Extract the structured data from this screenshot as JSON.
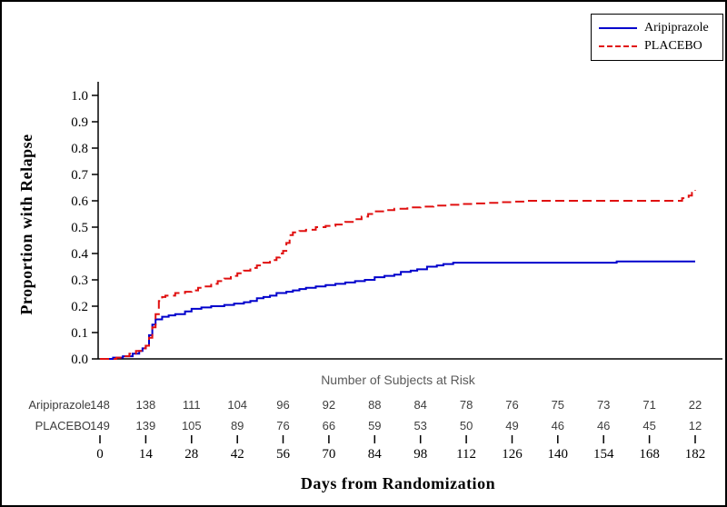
{
  "figure": {
    "background": "#ffffff",
    "border_color": "#000000"
  },
  "chart_data": {
    "type": "line",
    "subtype": "kaplan-meier-step",
    "title": "",
    "xlabel": "Days from Randomization",
    "ylabel": "Proportion with Relapse",
    "xlim": [
      0,
      182
    ],
    "ylim": [
      0,
      1.0
    ],
    "x_ticks": [
      0,
      14,
      28,
      42,
      56,
      70,
      84,
      98,
      112,
      126,
      140,
      154,
      168,
      182
    ],
    "y_ticks": [
      0,
      0.1,
      0.2,
      0.3,
      0.4,
      0.5,
      0.6,
      0.7,
      0.8,
      0.9,
      1.0
    ],
    "grid": false,
    "legend_position": "top-right",
    "series": [
      {
        "name": "Aripiprazole",
        "color": "#0000cc",
        "style": "solid",
        "points": [
          [
            0,
            0
          ],
          [
            4,
            0.005
          ],
          [
            7,
            0.01
          ],
          [
            10,
            0.02
          ],
          [
            12,
            0.03
          ],
          [
            13,
            0.04
          ],
          [
            14,
            0.05
          ],
          [
            15,
            0.09
          ],
          [
            16,
            0.13
          ],
          [
            17,
            0.15
          ],
          [
            19,
            0.16
          ],
          [
            21,
            0.165
          ],
          [
            23,
            0.17
          ],
          [
            26,
            0.18
          ],
          [
            28,
            0.19
          ],
          [
            31,
            0.195
          ],
          [
            34,
            0.2
          ],
          [
            38,
            0.205
          ],
          [
            41,
            0.21
          ],
          [
            44,
            0.215
          ],
          [
            46,
            0.22
          ],
          [
            48,
            0.23
          ],
          [
            50,
            0.235
          ],
          [
            52,
            0.24
          ],
          [
            54,
            0.25
          ],
          [
            57,
            0.255
          ],
          [
            59,
            0.26
          ],
          [
            61,
            0.265
          ],
          [
            63,
            0.27
          ],
          [
            66,
            0.275
          ],
          [
            69,
            0.28
          ],
          [
            72,
            0.285
          ],
          [
            75,
            0.29
          ],
          [
            78,
            0.295
          ],
          [
            81,
            0.3
          ],
          [
            84,
            0.31
          ],
          [
            87,
            0.315
          ],
          [
            90,
            0.32
          ],
          [
            92,
            0.33
          ],
          [
            95,
            0.335
          ],
          [
            97,
            0.34
          ],
          [
            100,
            0.35
          ],
          [
            103,
            0.355
          ],
          [
            105,
            0.36
          ],
          [
            108,
            0.365
          ],
          [
            158,
            0.37
          ],
          [
            182,
            0.37
          ]
        ]
      },
      {
        "name": "PLACEBO",
        "color": "#e01010",
        "style": "dashed",
        "points": [
          [
            0,
            0
          ],
          [
            5,
            0.005
          ],
          [
            7,
            0.01
          ],
          [
            9,
            0.02
          ],
          [
            11,
            0.03
          ],
          [
            13,
            0.04
          ],
          [
            14,
            0.05
          ],
          [
            15,
            0.08
          ],
          [
            16,
            0.12
          ],
          [
            17,
            0.17
          ],
          [
            18,
            0.22
          ],
          [
            19,
            0.235
          ],
          [
            20,
            0.24
          ],
          [
            23,
            0.25
          ],
          [
            26,
            0.255
          ],
          [
            28,
            0.26
          ],
          [
            30,
            0.27
          ],
          [
            32,
            0.275
          ],
          [
            34,
            0.285
          ],
          [
            36,
            0.295
          ],
          [
            38,
            0.305
          ],
          [
            40,
            0.315
          ],
          [
            42,
            0.325
          ],
          [
            44,
            0.335
          ],
          [
            46,
            0.345
          ],
          [
            48,
            0.355
          ],
          [
            50,
            0.365
          ],
          [
            52,
            0.375
          ],
          [
            54,
            0.385
          ],
          [
            55,
            0.4
          ],
          [
            56,
            0.41
          ],
          [
            57,
            0.44
          ],
          [
            58,
            0.47
          ],
          [
            59,
            0.48
          ],
          [
            61,
            0.485
          ],
          [
            63,
            0.49
          ],
          [
            66,
            0.5
          ],
          [
            69,
            0.505
          ],
          [
            72,
            0.51
          ],
          [
            75,
            0.52
          ],
          [
            78,
            0.53
          ],
          [
            80,
            0.54
          ],
          [
            82,
            0.55
          ],
          [
            84,
            0.56
          ],
          [
            87,
            0.565
          ],
          [
            90,
            0.57
          ],
          [
            94,
            0.575
          ],
          [
            98,
            0.578
          ],
          [
            102,
            0.582
          ],
          [
            106,
            0.585
          ],
          [
            110,
            0.588
          ],
          [
            114,
            0.59
          ],
          [
            118,
            0.592
          ],
          [
            122,
            0.595
          ],
          [
            126,
            0.597
          ],
          [
            130,
            0.6
          ],
          [
            176,
            0.6
          ],
          [
            178,
            0.61
          ],
          [
            180,
            0.62
          ],
          [
            181,
            0.63
          ],
          [
            182,
            0.64
          ]
        ]
      }
    ],
    "risk_table": {
      "title": "Number of Subjects at Risk",
      "rows": [
        {
          "label": "Aripiprazole",
          "values": [
            148,
            138,
            111,
            104,
            96,
            92,
            88,
            84,
            78,
            76,
            75,
            73,
            71,
            22
          ]
        },
        {
          "label": "PLACEBO",
          "values": [
            149,
            139,
            105,
            89,
            76,
            66,
            59,
            53,
            50,
            49,
            46,
            46,
            45,
            12
          ]
        }
      ]
    }
  }
}
